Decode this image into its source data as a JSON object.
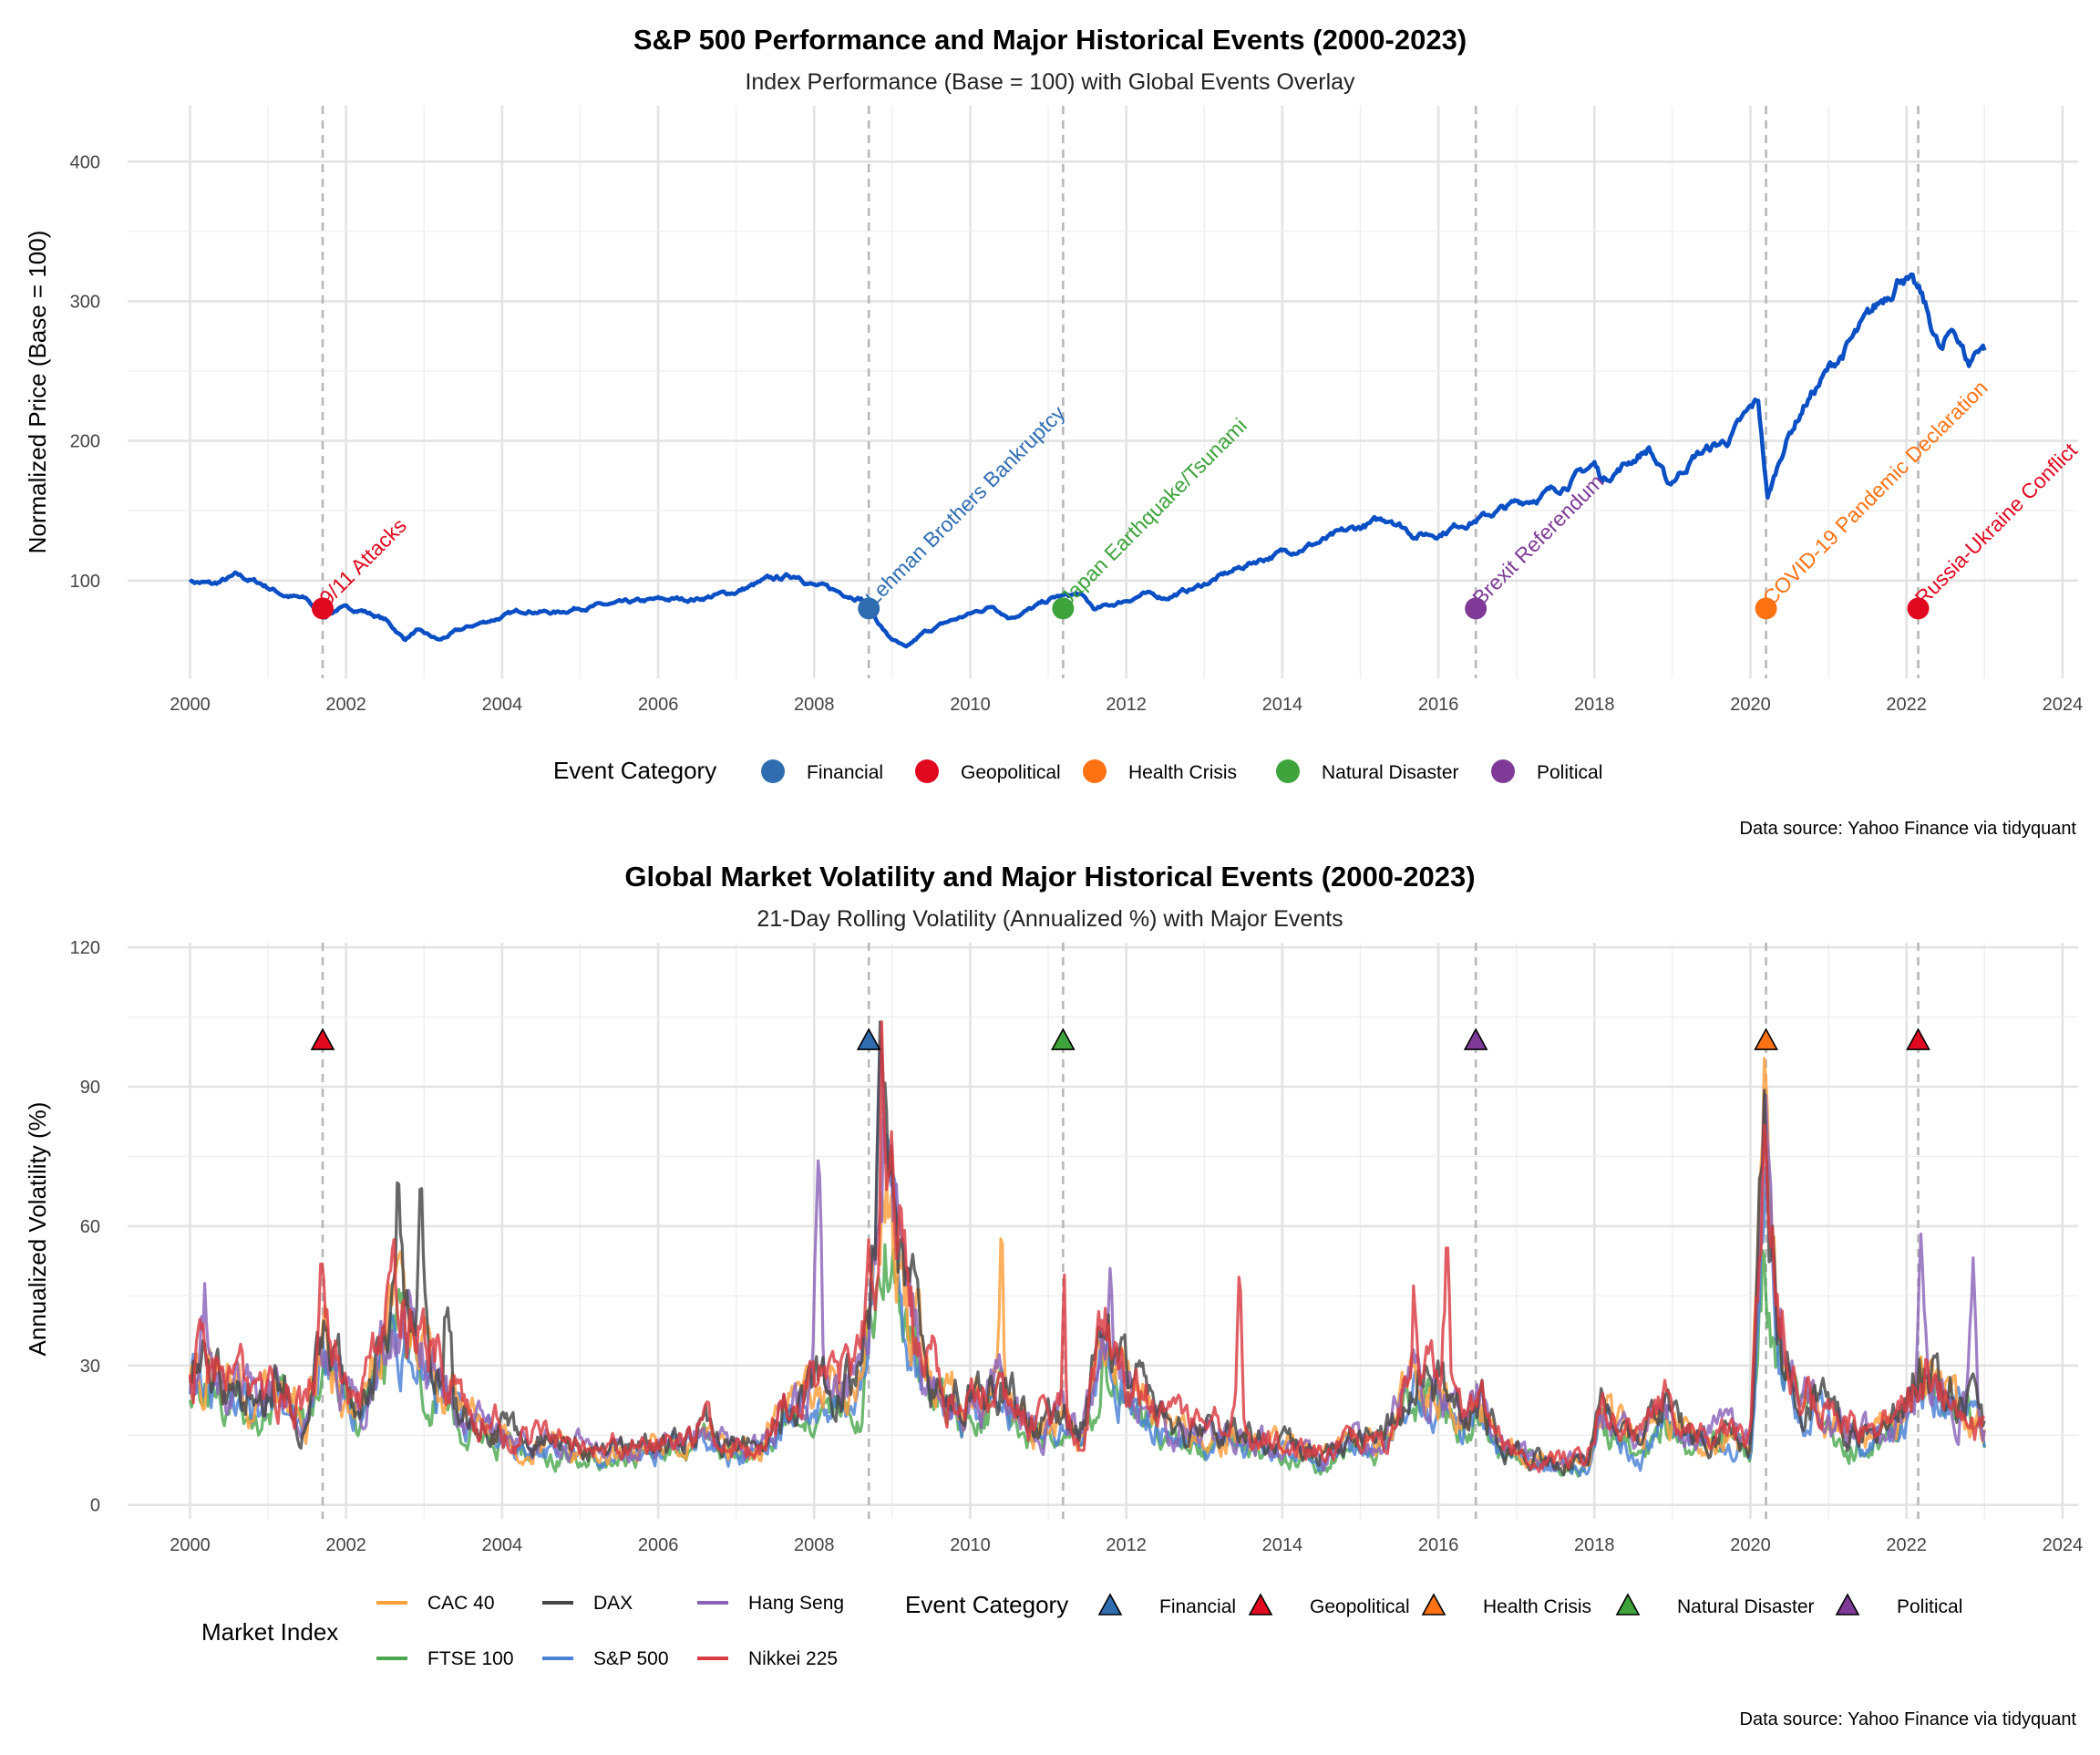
{
  "chart_data": [
    {
      "type": "line",
      "title": "S&P 500 Performance and Major Historical Events (2000-2023)",
      "subtitle": "Index Performance (Base = 100) with Global Events Overlay",
      "xlabel": "",
      "ylabel": "Normalized Price (Base = 100)",
      "xlim": [
        1999.2,
        2024.2
      ],
      "ylim": [
        30,
        440
      ],
      "x_ticks": [
        "2000",
        "2002",
        "2004",
        "2006",
        "2008",
        "2010",
        "2012",
        "2014",
        "2016",
        "2018",
        "2020",
        "2022",
        "2024"
      ],
      "y_ticks": [
        100,
        200,
        300,
        400
      ],
      "grid": true,
      "line_color": "#0b4fc4",
      "series": [
        {
          "points": [
            [
              2000.0,
              100
            ],
            [
              2000.3,
              97
            ],
            [
              2000.6,
              103
            ],
            [
              2000.9,
              98
            ],
            [
              2001.2,
              90
            ],
            [
              2001.5,
              86
            ],
            [
              2001.7,
              74
            ],
            [
              2001.9,
              80
            ],
            [
              2002.2,
              79
            ],
            [
              2002.5,
              72
            ],
            [
              2002.75,
              58
            ],
            [
              2002.9,
              64
            ],
            [
              2003.2,
              57
            ],
            [
              2003.4,
              63
            ],
            [
              2003.7,
              69
            ],
            [
              2004.0,
              74
            ],
            [
              2004.3,
              79
            ],
            [
              2004.7,
              77
            ],
            [
              2005.0,
              81
            ],
            [
              2005.5,
              83
            ],
            [
              2006.0,
              86
            ],
            [
              2006.5,
              87
            ],
            [
              2007.0,
              92
            ],
            [
              2007.4,
              100
            ],
            [
              2007.8,
              104
            ],
            [
              2008.0,
              97
            ],
            [
              2008.3,
              92
            ],
            [
              2008.6,
              88
            ],
            [
              2008.8,
              72
            ],
            [
              2008.95,
              60
            ],
            [
              2009.18,
              51
            ],
            [
              2009.4,
              62
            ],
            [
              2009.7,
              70
            ],
            [
              2010.0,
              76
            ],
            [
              2010.3,
              82
            ],
            [
              2010.5,
              74
            ],
            [
              2010.8,
              80
            ],
            [
              2011.1,
              88
            ],
            [
              2011.4,
              90
            ],
            [
              2011.6,
              79
            ],
            [
              2011.9,
              84
            ],
            [
              2012.2,
              90
            ],
            [
              2012.5,
              88
            ],
            [
              2012.9,
              95
            ],
            [
              2013.3,
              105
            ],
            [
              2013.7,
              115
            ],
            [
              2014.0,
              120
            ],
            [
              2014.5,
              128
            ],
            [
              2015.0,
              138
            ],
            [
              2015.4,
              145
            ],
            [
              2015.7,
              133
            ],
            [
              2016.0,
              134
            ],
            [
              2016.3,
              141
            ],
            [
              2016.6,
              146
            ],
            [
              2017.0,
              155
            ],
            [
              2017.5,
              165
            ],
            [
              2018.0,
              183
            ],
            [
              2018.1,
              172
            ],
            [
              2018.7,
              195
            ],
            [
              2018.95,
              168
            ],
            [
              2019.3,
              190
            ],
            [
              2019.7,
              200
            ],
            [
              2020.1,
              228
            ],
            [
              2020.22,
              158
            ],
            [
              2020.45,
              200
            ],
            [
              2020.7,
              227
            ],
            [
              2021.0,
              250
            ],
            [
              2021.5,
              285
            ],
            [
              2021.95,
              322
            ],
            [
              2022.2,
              300
            ],
            [
              2022.45,
              262
            ],
            [
              2022.6,
              282
            ],
            [
              2022.8,
              255
            ],
            [
              2022.95,
              270
            ],
            [
              2023.0,
              268
            ]
          ]
        }
      ],
      "events": [
        {
          "label": "9/11 Attacks",
          "x": 2001.7,
          "category": "Geopolitical"
        },
        {
          "label": "Lehman Brothers Bankruptcy",
          "x": 2008.7,
          "category": "Financial"
        },
        {
          "label": "Japan Earthquake/Tsunami",
          "x": 2011.19,
          "category": "Natural Disaster"
        },
        {
          "label": "Brexit Referendum",
          "x": 2016.48,
          "category": "Political"
        },
        {
          "label": "COVID-19 Pandemic Declaration",
          "x": 2020.2,
          "category": "Health Crisis"
        },
        {
          "label": "Russia-Ukraine Conflict",
          "x": 2022.15,
          "category": "Geopolitical"
        }
      ],
      "event_marker_value": 80,
      "legend": {
        "title": "Event Category",
        "position": "bottom",
        "entries": [
          "Financial",
          "Geopolitical",
          "Health Crisis",
          "Natural Disaster",
          "Political"
        ]
      },
      "caption": "Data source: Yahoo Finance via tidyquant"
    },
    {
      "type": "line",
      "title": "Global Market Volatility and Major Historical Events (2000-2023)",
      "subtitle": "21-Day Rolling Volatility (Annualized %) with Major Events",
      "xlabel": "",
      "ylabel": "Annualized Volatility (%)",
      "xlim": [
        1999.2,
        2024.2
      ],
      "ylim": [
        -3,
        121
      ],
      "x_ticks": [
        "2000",
        "2002",
        "2004",
        "2006",
        "2008",
        "2010",
        "2012",
        "2014",
        "2016",
        "2018",
        "2020",
        "2022",
        "2024"
      ],
      "y_ticks": [
        0,
        30,
        60,
        90,
        120
      ],
      "grid": true,
      "series": [
        {
          "name": "CAC 40",
          "color": "#ff9f3a"
        },
        {
          "name": "DAX",
          "color": "#454545"
        },
        {
          "name": "Hang Seng",
          "color": "#8a63b8"
        },
        {
          "name": "FTSE 100",
          "color": "#4ca84f"
        },
        {
          "name": "S&P 500",
          "color": "#4a80d6"
        },
        {
          "name": "Nikkei 225",
          "color": "#d93b41"
        }
      ],
      "volatility_profile": [
        [
          2000.0,
          30
        ],
        [
          2000.4,
          25
        ],
        [
          2000.8,
          22
        ],
        [
          2001.2,
          24
        ],
        [
          2001.5,
          18
        ],
        [
          2001.7,
          35
        ],
        [
          2001.85,
          28
        ],
        [
          2002.2,
          20
        ],
        [
          2002.6,
          38
        ],
        [
          2002.9,
          32
        ],
        [
          2003.2,
          28
        ],
        [
          2003.5,
          18
        ],
        [
          2003.9,
          15
        ],
        [
          2004.3,
          13
        ],
        [
          2004.7,
          12
        ],
        [
          2005.2,
          11
        ],
        [
          2005.7,
          11
        ],
        [
          2006.3,
          13
        ],
        [
          2006.6,
          16
        ],
        [
          2006.9,
          11
        ],
        [
          2007.3,
          12
        ],
        [
          2007.6,
          19
        ],
        [
          2008.0,
          23
        ],
        [
          2008.3,
          24
        ],
        [
          2008.6,
          26
        ],
        [
          2008.8,
          55
        ],
        [
          2008.95,
          68
        ],
        [
          2009.2,
          40
        ],
        [
          2009.5,
          26
        ],
        [
          2009.9,
          20
        ],
        [
          2010.4,
          24
        ],
        [
          2010.8,
          16
        ],
        [
          2011.2,
          18
        ],
        [
          2011.4,
          14
        ],
        [
          2011.7,
          34
        ],
        [
          2011.95,
          26
        ],
        [
          2012.4,
          18
        ],
        [
          2012.8,
          14
        ],
        [
          2013.4,
          15
        ],
        [
          2013.9,
          12
        ],
        [
          2014.5,
          10
        ],
        [
          2014.9,
          13
        ],
        [
          2015.3,
          13
        ],
        [
          2015.65,
          25
        ],
        [
          2016.0,
          24
        ],
        [
          2016.3,
          17
        ],
        [
          2016.5,
          22
        ],
        [
          2016.8,
          12
        ],
        [
          2017.4,
          9
        ],
        [
          2017.9,
          8
        ],
        [
          2018.1,
          20
        ],
        [
          2018.6,
          12
        ],
        [
          2018.9,
          20
        ],
        [
          2019.3,
          13
        ],
        [
          2019.7,
          15
        ],
        [
          2020.0,
          12
        ],
        [
          2020.18,
          70
        ],
        [
          2020.35,
          38
        ],
        [
          2020.6,
          22
        ],
        [
          2021.0,
          18
        ],
        [
          2021.5,
          14
        ],
        [
          2021.9,
          17
        ],
        [
          2022.2,
          28
        ],
        [
          2022.5,
          22
        ],
        [
          2022.8,
          20
        ],
        [
          2023.0,
          15
        ]
      ],
      "events": [
        {
          "x": 2001.7,
          "category": "Geopolitical"
        },
        {
          "x": 2008.7,
          "category": "Financial"
        },
        {
          "x": 2011.19,
          "category": "Natural Disaster"
        },
        {
          "x": 2016.48,
          "category": "Political"
        },
        {
          "x": 2020.2,
          "category": "Health Crisis"
        },
        {
          "x": 2022.15,
          "category": "Geopolitical"
        }
      ],
      "event_marker_value": 100,
      "legend": [
        {
          "title": "Market Index",
          "position": "bottom",
          "entries": [
            "CAC 40",
            "DAX",
            "Hang Seng",
            "FTSE 100",
            "S&P 500",
            "Nikkei 225"
          ]
        },
        {
          "title": "Event Category",
          "position": "bottom",
          "entries": [
            "Financial",
            "Geopolitical",
            "Health Crisis",
            "Natural Disaster",
            "Political"
          ]
        }
      ],
      "caption": "Data source: Yahoo Finance via tidyquant"
    }
  ],
  "category_colors": {
    "Financial": "#2f6db0",
    "Geopolitical": "#e0091f",
    "Health Crisis": "#ff7214",
    "Natural Disaster": "#3da33a",
    "Political": "#7e3a96"
  }
}
